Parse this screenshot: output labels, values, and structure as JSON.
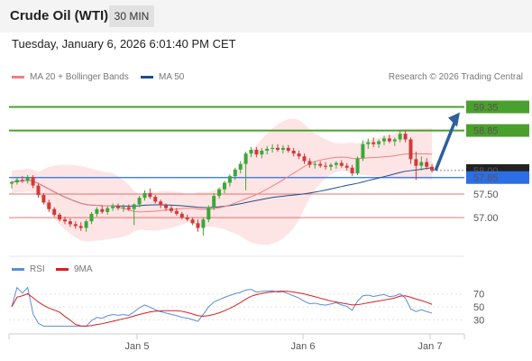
{
  "header": {
    "title": "Crude Oil (WTI)",
    "timeframe": "30 MIN"
  },
  "datetime": "Tuesday, January 6, 2026 6:01:40 PM CET",
  "legend": {
    "ma20": "MA 20 + Bollinger Bands",
    "ma50": "MA 50",
    "credit": "Research © 2026 Trading Central"
  },
  "rsi_legend": {
    "rsi": "RSI",
    "ma9": "9MA"
  },
  "colors": {
    "ma20": "#f08080",
    "ma50": "#1f4e8c",
    "resistance": "#4aa02c",
    "support": "#e05555",
    "pivot": "#2b6ee6",
    "bollinger": "#fde0e0",
    "candle_up": "#3aa83a",
    "candle_down": "#d03a3a",
    "rsi": "#5b8dd9",
    "rsi_ma": "#d82020",
    "arrow": "#2e5f9e"
  },
  "chart_data": [
    {
      "type": "candlestick",
      "title": "Crude Oil (WTI)",
      "timeframe": "30 MIN",
      "x_tick_labels": [
        "Jan 5",
        "Jan 6",
        "Jan 7"
      ],
      "ylim": [
        56.35,
        59.8
      ],
      "levels": [
        {
          "value": 59.35,
          "label": "59.35",
          "role": "resistance"
        },
        {
          "value": 58.85,
          "label": "58.85",
          "role": "resistance"
        },
        {
          "value": 58.0,
          "label": "58.00",
          "role": "last"
        },
        {
          "value": 57.85,
          "label": "57.85",
          "role": "pivot"
        },
        {
          "value": 57.5,
          "label": "57.50",
          "role": "support"
        },
        {
          "value": 57.0,
          "label": "57.00",
          "role": "support"
        }
      ],
      "candles": [
        [
          57.72,
          57.78,
          57.62,
          57.75
        ],
        [
          57.75,
          57.84,
          57.7,
          57.8
        ],
        [
          57.8,
          57.88,
          57.74,
          57.78
        ],
        [
          57.78,
          57.9,
          57.72,
          57.86
        ],
        [
          57.86,
          57.9,
          57.62,
          57.68
        ],
        [
          57.68,
          57.72,
          57.42,
          57.48
        ],
        [
          57.48,
          57.52,
          57.28,
          57.32
        ],
        [
          57.32,
          57.38,
          57.12,
          57.18
        ],
        [
          57.18,
          57.22,
          57.02,
          57.06
        ],
        [
          57.06,
          57.1,
          56.92,
          56.96
        ],
        [
          56.96,
          57.02,
          56.86,
          56.92
        ],
        [
          56.92,
          56.98,
          56.8,
          56.86
        ],
        [
          56.86,
          56.92,
          56.76,
          56.82
        ],
        [
          56.82,
          56.9,
          56.72,
          56.78
        ],
        [
          56.78,
          56.96,
          56.7,
          56.92
        ],
        [
          56.92,
          57.12,
          56.86,
          57.08
        ],
        [
          57.08,
          57.22,
          57.02,
          57.18
        ],
        [
          57.18,
          57.26,
          57.08,
          57.12
        ],
        [
          57.12,
          57.24,
          57.06,
          57.2
        ],
        [
          57.2,
          57.3,
          57.14,
          57.24
        ],
        [
          57.24,
          57.3,
          57.16,
          57.2
        ],
        [
          57.2,
          57.28,
          57.12,
          57.22
        ],
        [
          57.22,
          57.28,
          57.14,
          57.18
        ],
        [
          57.18,
          57.3,
          56.84,
          57.28
        ],
        [
          57.28,
          57.46,
          57.22,
          57.42
        ],
        [
          57.42,
          57.58,
          57.36,
          57.52
        ],
        [
          57.52,
          57.62,
          57.4,
          57.44
        ],
        [
          57.44,
          57.48,
          57.3,
          57.34
        ],
        [
          57.34,
          57.38,
          57.2,
          57.26
        ],
        [
          57.26,
          57.3,
          57.14,
          57.2
        ],
        [
          57.2,
          57.26,
          57.1,
          57.14
        ],
        [
          57.14,
          57.2,
          57.04,
          57.08
        ],
        [
          57.08,
          57.12,
          56.96,
          57.0
        ],
        [
          57.0,
          57.06,
          56.92,
          56.96
        ],
        [
          56.96,
          57.0,
          56.84,
          56.88
        ],
        [
          56.88,
          56.96,
          56.7,
          56.78
        ],
        [
          56.78,
          57.0,
          56.62,
          56.96
        ],
        [
          56.96,
          57.26,
          56.9,
          57.22
        ],
        [
          57.22,
          57.52,
          57.16,
          57.46
        ],
        [
          57.46,
          57.64,
          57.4,
          57.6
        ],
        [
          57.6,
          57.78,
          57.52,
          57.74
        ],
        [
          57.74,
          57.92,
          57.66,
          57.88
        ],
        [
          57.88,
          58.06,
          57.8,
          58.02
        ],
        [
          58.02,
          58.2,
          57.94,
          58.14
        ],
        [
          58.14,
          58.4,
          57.58,
          58.36
        ],
        [
          58.36,
          58.5,
          58.28,
          58.44
        ],
        [
          58.44,
          58.5,
          58.28,
          58.34
        ],
        [
          58.34,
          58.48,
          58.26,
          58.42
        ],
        [
          58.42,
          58.52,
          58.34,
          58.46
        ],
        [
          58.46,
          58.56,
          58.38,
          58.48
        ],
        [
          58.48,
          58.56,
          58.4,
          58.44
        ],
        [
          58.44,
          58.54,
          58.36,
          58.48
        ],
        [
          58.48,
          58.54,
          58.38,
          58.42
        ],
        [
          58.42,
          58.48,
          58.3,
          58.36
        ],
        [
          58.36,
          58.42,
          58.24,
          58.3
        ],
        [
          58.3,
          58.36,
          58.14,
          58.2
        ],
        [
          58.2,
          58.26,
          58.06,
          58.12
        ],
        [
          58.12,
          58.2,
          58.04,
          58.14
        ],
        [
          58.14,
          58.2,
          58.06,
          58.1
        ],
        [
          58.1,
          58.18,
          58.02,
          58.08
        ],
        [
          58.08,
          58.16,
          58.0,
          58.12
        ],
        [
          58.12,
          58.2,
          58.04,
          58.16
        ],
        [
          58.16,
          58.22,
          58.06,
          58.1
        ],
        [
          58.1,
          58.16,
          58.0,
          58.06
        ],
        [
          58.06,
          58.12,
          57.88,
          57.94
        ],
        [
          57.94,
          58.3,
          57.9,
          58.26
        ],
        [
          58.26,
          58.64,
          58.2,
          58.56
        ],
        [
          58.56,
          58.68,
          58.46,
          58.6
        ],
        [
          58.6,
          58.7,
          58.5,
          58.56
        ],
        [
          58.56,
          58.66,
          58.48,
          58.62
        ],
        [
          58.62,
          58.74,
          58.54,
          58.68
        ],
        [
          58.68,
          58.76,
          58.58,
          58.62
        ],
        [
          58.62,
          58.7,
          58.52,
          58.66
        ],
        [
          58.66,
          58.84,
          58.6,
          58.78
        ],
        [
          58.78,
          58.84,
          58.6,
          58.66
        ],
        [
          58.66,
          58.7,
          58.14,
          58.24
        ],
        [
          58.24,
          58.4,
          57.8,
          58.1
        ],
        [
          58.1,
          58.3,
          58.0,
          58.18
        ],
        [
          58.18,
          58.26,
          58.02,
          58.08
        ],
        [
          58.08,
          58.14,
          57.96,
          58.0
        ]
      ]
    },
    {
      "type": "line",
      "title": "RSI",
      "series": [
        {
          "name": "RSI"
        },
        {
          "name": "9MA"
        }
      ],
      "y_tick_labels": [
        "70",
        "50",
        "30"
      ],
      "ylim": [
        15,
        85
      ]
    }
  ]
}
